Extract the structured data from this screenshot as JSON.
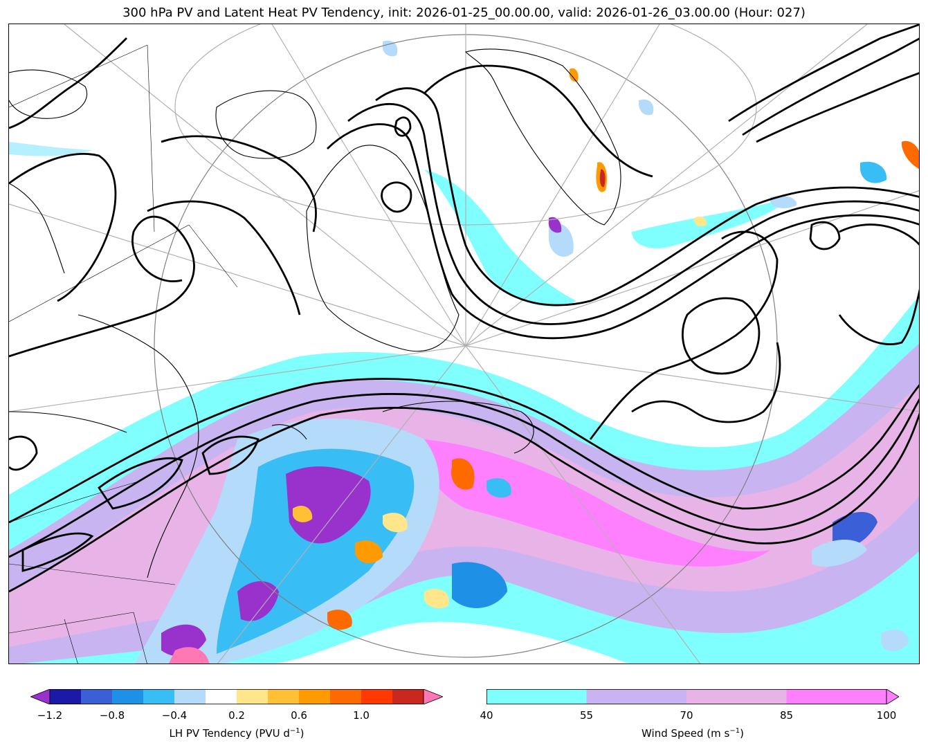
{
  "title": "300 hPa PV and Latent Heat PV Tendency, init: 2026-01-25_00.00.00, valid: 2026-01-26_03.00.00 (Hour: 027)",
  "colorbars": {
    "lh": {
      "label": "LH PV Tendency (PVU d",
      "label_sup": "−1",
      "label_end": ")",
      "ticks": [
        "−1.2",
        "−0.8",
        "−0.4",
        "0.2",
        "0.6",
        "1.0"
      ],
      "colors": [
        "#9932cc",
        "#1a1aa6",
        "#3a5fd6",
        "#1e90e6",
        "#38bdf5",
        "#b4dcfa",
        "#ffffff",
        "#ffe68a",
        "#ffc036",
        "#ff9a00",
        "#ff6a00",
        "#ff3a00",
        "#c8281e",
        "#ff78b4"
      ]
    },
    "wind": {
      "label": "Wind Speed (m s",
      "label_sup": "−1",
      "label_end": ")",
      "ticks": [
        "40",
        "55",
        "70",
        "85",
        "100"
      ],
      "colors": [
        "#80ffff",
        "#c8b4f0",
        "#e8b4e8",
        "#ff80ff"
      ]
    }
  }
}
